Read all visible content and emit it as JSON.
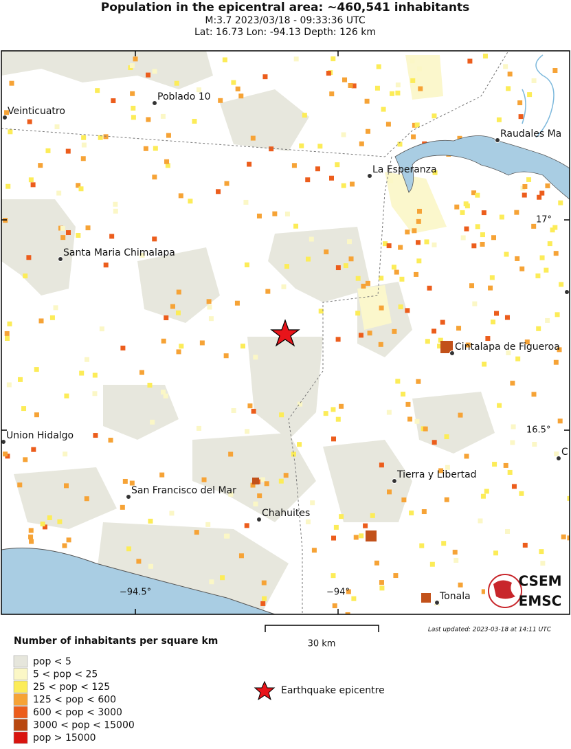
{
  "header": {
    "title": "Population in the epicentral area: ~460,541 inhabitants",
    "line1": "M:3.7 2023/03/18 - 09:33:36 UTC",
    "line2": "Lat: 16.73 Lon: -94.13 Depth: 126 km"
  },
  "map": {
    "places": [
      "Veinticuatro",
      "Poblado 10",
      "La Esperanza",
      "Raudales Ma",
      "Santa Maria Chimalapa",
      "Cintalapa de Figueroa",
      "Union Hidalgo",
      "C",
      "Tierra y Libertad",
      "San Francisco del Mar",
      "Chahuites",
      "Tonala"
    ],
    "grid_labels": [
      "17°",
      "16.5°",
      "−94.5°",
      "−94°"
    ]
  },
  "scale": "30 km",
  "updated": "Last updated: 2023-03-18 at 14:11 UTC",
  "legend": {
    "title": "Number of inhabitants per square km",
    "items": [
      {
        "label": "pop < 5",
        "color": "#e6e6dc"
      },
      {
        "label": "5 < pop < 25",
        "color": "#fbf7c6"
      },
      {
        "label": "25 < pop < 125",
        "color": "#fcec58"
      },
      {
        "label": "125 < pop < 600",
        "color": "#f6a336"
      },
      {
        "label": "600 < pop < 3000",
        "color": "#ec5d1c"
      },
      {
        "label": "3000 < pop < 15000",
        "color": "#b8470f"
      },
      {
        "label": "pop > 15000",
        "color": "#d9140f"
      }
    ],
    "epicentre": "Earthquake epicentre"
  },
  "logo": {
    "top": "CSEM",
    "bottom": "EMSC"
  }
}
